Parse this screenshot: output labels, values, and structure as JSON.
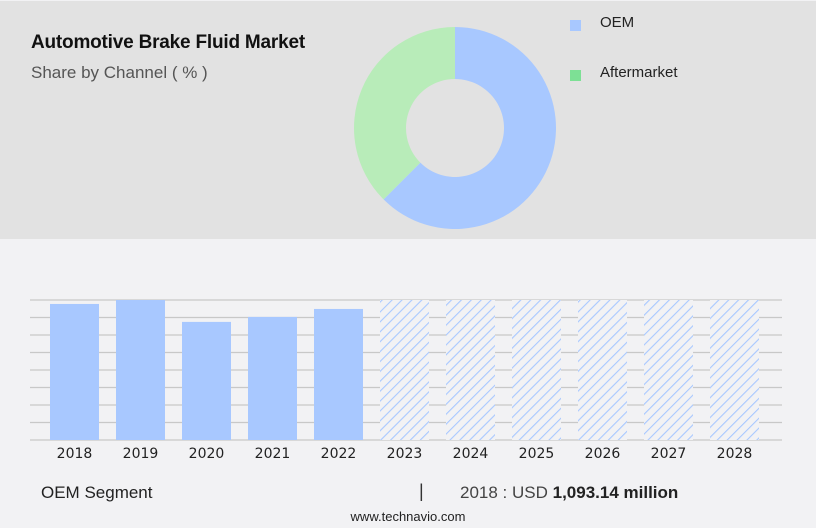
{
  "header": {
    "title": "Automotive Brake Fluid Market",
    "subtitle": "Share by Channel ( % )"
  },
  "legend": [
    {
      "label": "OEM",
      "color": "#a8c8ff"
    },
    {
      "label": "Aftermarket",
      "color": "#7de095"
    }
  ],
  "footer": {
    "segment": "OEM Segment",
    "separator": "|",
    "year_prefix": "2018 : USD",
    "value": "1,093.14 million",
    "website": "www.technavio.com"
  },
  "colors": {
    "oem": "#a8c8ff",
    "aftermarket_slice": "#b8ecb9",
    "aftermarket_legend": "#7de095",
    "top_bg": "#e2e2e2",
    "bottom_bg": "#f2f2f4",
    "grid": "#c8c8c8"
  },
  "chart_data": [
    {
      "type": "pie",
      "title": "Automotive Brake Fluid Market",
      "subtitle": "Share by Channel ( % )",
      "donut": true,
      "categories": [
        "OEM",
        "Aftermarket"
      ],
      "values": [
        62.5,
        37.5
      ],
      "legend_position": "right"
    },
    {
      "type": "bar",
      "title": "OEM Segment",
      "categories": [
        "2018",
        "2019",
        "2020",
        "2021",
        "2022",
        "2023",
        "2024",
        "2025",
        "2026",
        "2027",
        "2028"
      ],
      "values": [
        1093.14,
        1125,
        949,
        989,
        1053,
        null,
        null,
        null,
        null,
        null,
        null
      ],
      "forecast": [
        false,
        false,
        false,
        false,
        false,
        true,
        true,
        true,
        true,
        true,
        true
      ],
      "annotation": "2018 : USD 1,093.14 million",
      "xlabel": "",
      "ylabel": "",
      "ylim": [
        0,
        1125
      ],
      "grid": true,
      "gridlines": 8
    }
  ]
}
